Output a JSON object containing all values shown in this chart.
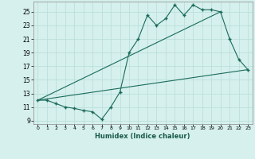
{
  "xlabel": "Humidex (Indice chaleur)",
  "background_color": "#d5f0ed",
  "grid_color": "#b8ddd8",
  "line_color": "#1a6b5a",
  "xlim": [
    -0.5,
    23.5
  ],
  "ylim": [
    8.5,
    26.5
  ],
  "xtick_labels": [
    "0",
    "1",
    "2",
    "3",
    "4",
    "5",
    "6",
    "7",
    "8",
    "9",
    "10",
    "11",
    "12",
    "13",
    "14",
    "15",
    "16",
    "17",
    "18",
    "19",
    "20",
    "21",
    "22",
    "23"
  ],
  "ytick_labels": [
    "9",
    "11",
    "13",
    "15",
    "17",
    "19",
    "21",
    "23",
    "25"
  ],
  "ytick_vals": [
    9,
    11,
    13,
    15,
    17,
    19,
    21,
    23,
    25
  ],
  "line1_x": [
    0,
    1,
    2,
    3,
    4,
    5,
    6,
    7,
    8,
    9,
    10,
    11,
    12,
    13,
    14,
    15,
    16,
    17,
    18,
    19,
    20,
    21,
    22,
    23
  ],
  "line1_y": [
    12.0,
    12.0,
    11.5,
    11.0,
    10.8,
    10.5,
    10.3,
    9.2,
    11.0,
    13.2,
    19.0,
    21.0,
    24.5,
    23.0,
    24.0,
    26.0,
    24.5,
    26.0,
    25.3,
    25.3,
    25.0,
    21.0,
    18.0,
    16.5
  ],
  "line2_x": [
    0,
    23
  ],
  "line2_y": [
    12.0,
    16.5
  ],
  "line3_x": [
    0,
    20
  ],
  "line3_y": [
    12.0,
    25.0
  ]
}
